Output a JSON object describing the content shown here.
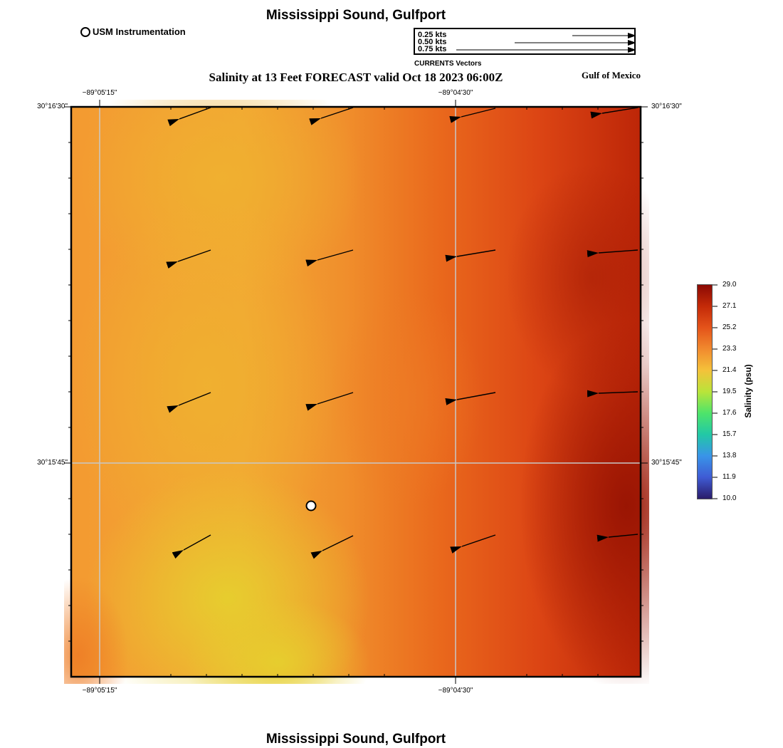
{
  "header": {
    "title": "Mississippi Sound, Gulfport",
    "subtitle": "Salinity at 13 Feet FORECAST valid Oct 18 2023 06:00Z",
    "region_label": "Gulf of Mexico",
    "station_legend": "USM Instrumentation"
  },
  "vector_legend": {
    "caption": "CURRENTS Vectors",
    "entries": [
      "0.25 kts",
      "0.50 kts",
      "0.75 kts"
    ]
  },
  "map": {
    "lon_labels": [
      "−89°05'15\"",
      "−89°04'30\""
    ],
    "lat_labels": [
      "30°16'30\"",
      "30°15'45\""
    ]
  },
  "colorbar": {
    "title": "Salinity (psu)",
    "ticks": [
      "29.0",
      "27.1",
      "25.2",
      "23.3",
      "21.4",
      "19.5",
      "17.6",
      "15.7",
      "13.8",
      "11.9",
      "10.0"
    ]
  },
  "footer": {
    "title": "Mississippi Sound, Gulfport"
  }
}
